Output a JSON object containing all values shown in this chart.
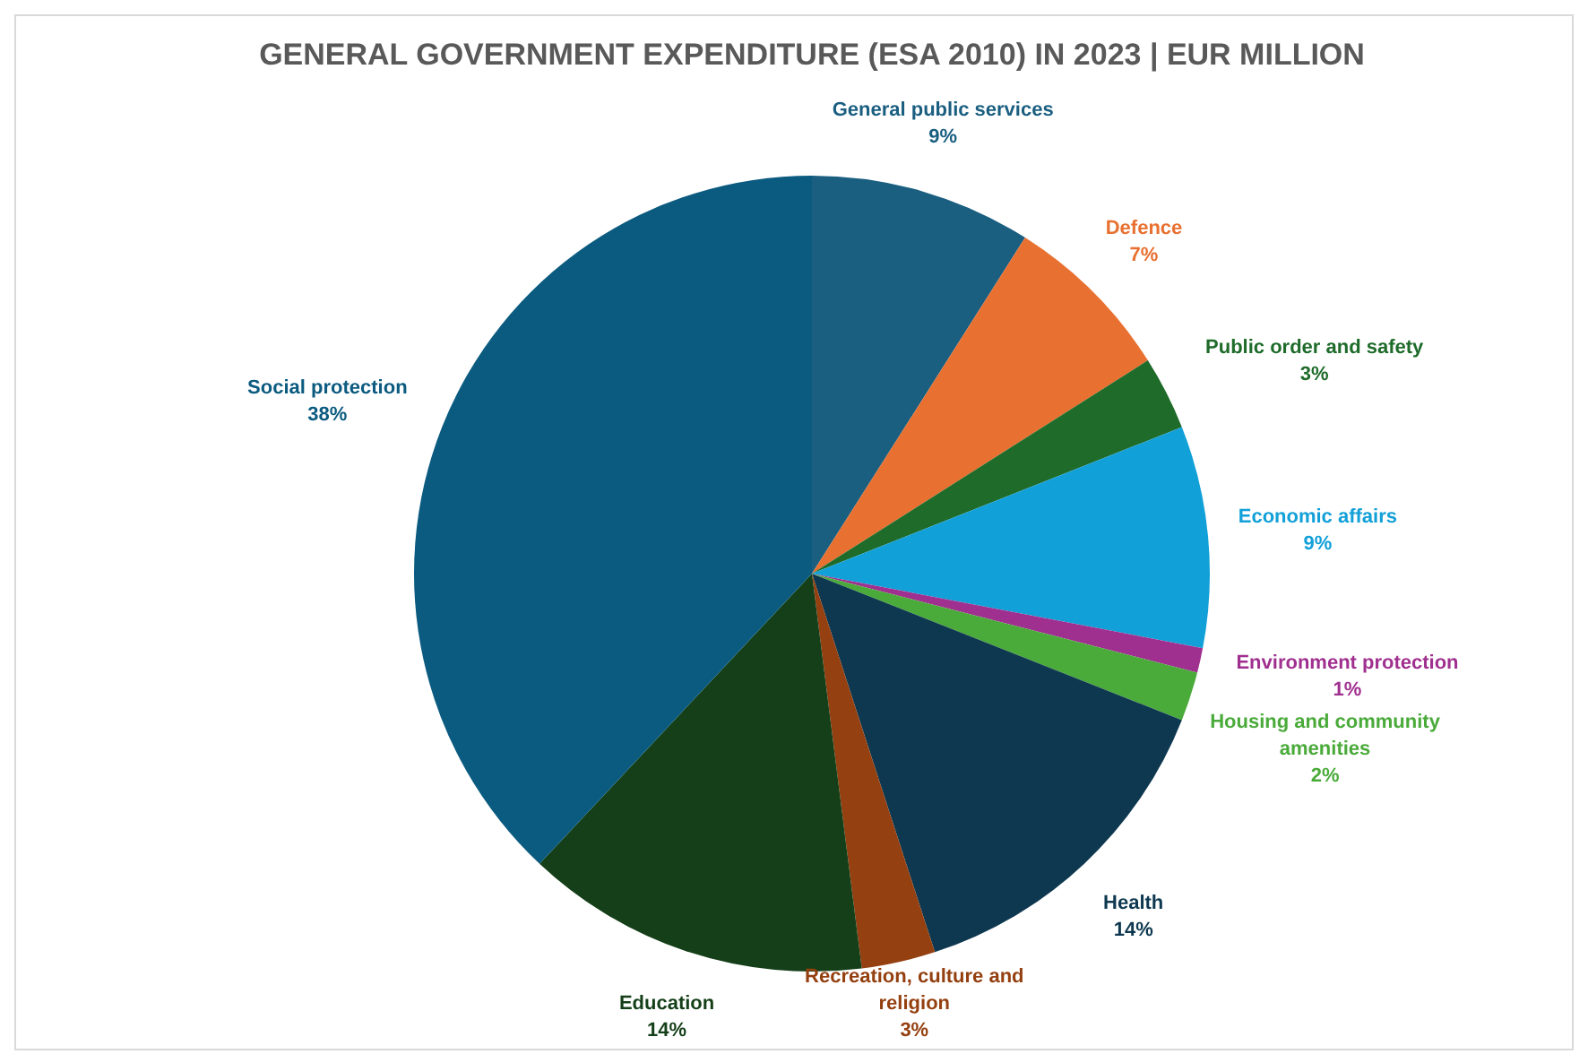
{
  "chart_data": {
    "type": "pie",
    "title": "GENERAL GOVERNMENT EXPENDITURE (ESA 2010) IN 2023 | EUR MILLION",
    "categories": [
      "General public services",
      "Defence",
      "Public order and safety",
      "Economic affairs",
      "Environment protection",
      "Housing and community amenities",
      "Health",
      "Recreation, culture and religion",
      "Education",
      "Social protection"
    ],
    "values": [
      9,
      7,
      3,
      9,
      1,
      2,
      14,
      3,
      14,
      38
    ],
    "value_labels": [
      "9%",
      "7%",
      "3%",
      "9%",
      "1%",
      "2%",
      "14%",
      "3%",
      "14%",
      "38%"
    ],
    "colors": [
      "#1a5e80",
      "#e87030",
      "#1e6b2a",
      "#12a0d8",
      "#a0308f",
      "#4aaa3a",
      "#0e3850",
      "#944010",
      "#143f18",
      "#0b5b80"
    ]
  }
}
